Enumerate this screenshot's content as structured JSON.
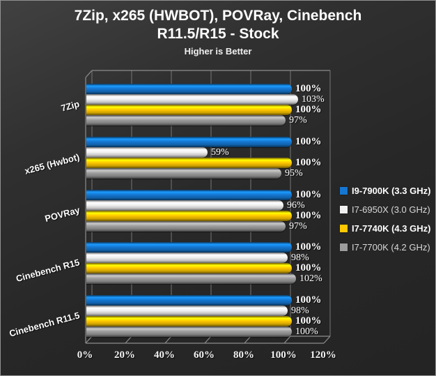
{
  "title": {
    "line1": "7Zip, x265 (HWBOT), POVRay, Cinebench",
    "line2": "R11.5/R15 - Stock",
    "subtitle": "Higher is Better"
  },
  "chart_data": {
    "type": "bar",
    "orientation": "horizontal",
    "title": "7Zip, x265 (HWBOT), POVRay, Cinebench R11.5/R15 - Stock",
    "subtitle": "Higher is Better",
    "categories": [
      "7Zip",
      "x265 (Hwbot)",
      "POVRay",
      "Cinebench R15",
      "Cinebench R11.5"
    ],
    "series": [
      {
        "name": "I9-7900K (3.3 GHz)",
        "color": "#1577d1",
        "bold": true,
        "values": [
          100,
          100,
          100,
          100,
          100
        ]
      },
      {
        "name": "I7-6950X (3.0 GHz)",
        "color": "#f0f0f0",
        "bold": false,
        "values": [
          103,
          59,
          96,
          98,
          98
        ]
      },
      {
        "name": "I7-7740K (4.3 GHz)",
        "color": "#ffc800",
        "bold": true,
        "values": [
          100,
          100,
          100,
          100,
          100
        ]
      },
      {
        "name": "I7-7700K (4.2 GHz)",
        "color": "#9c9c9c",
        "bold": false,
        "values": [
          97,
          95,
          97,
          102,
          100
        ]
      }
    ],
    "x_ticks": [
      "0%",
      "20%",
      "40%",
      "60%",
      "80%",
      "100%",
      "120%"
    ],
    "xlim": [
      0,
      120
    ],
    "value_suffix": "%",
    "xlabel": "",
    "ylabel": "",
    "grid": true,
    "legend_position": "right",
    "style_3d": true
  },
  "colors": {
    "background": "#2b2b2b",
    "grid_line": "#767676",
    "wall_line": "#8d8d8d",
    "text": "#ffffff"
  }
}
